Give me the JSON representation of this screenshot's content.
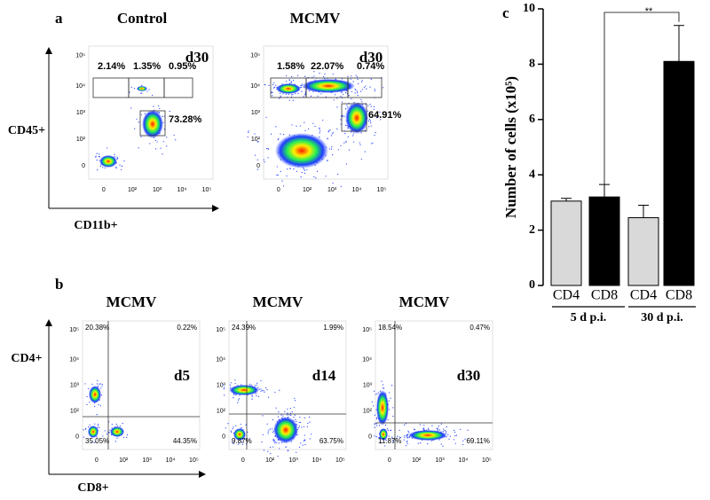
{
  "panel_labels": [
    "a",
    "b",
    "c"
  ],
  "axis_ticks": [
    "0",
    "10²",
    "10³",
    "10⁴",
    "10⁵"
  ],
  "panel_a": {
    "y_label": "CD45+",
    "x_label": "CD11b+",
    "plots": [
      {
        "title": "Control",
        "day": "d30",
        "gates": [
          "2.14%",
          "1.35%",
          "0.95%",
          "73.28%"
        ]
      },
      {
        "title": "MCMV",
        "day": "d30",
        "gates": [
          "1.58%",
          "22.07%",
          "0.74%",
          "64.91%"
        ]
      }
    ]
  },
  "panel_b": {
    "y_label": "CD4+",
    "x_label": "CD8+",
    "plots": [
      {
        "title": "MCMV",
        "day": "d5",
        "quadrants": [
          "20.38%",
          "0.22%",
          "35.05%",
          "44.35%"
        ]
      },
      {
        "title": "MCMV",
        "day": "d14",
        "quadrants": [
          "24.39%",
          "1.99%",
          "9.87%",
          "63.75%"
        ]
      },
      {
        "title": "MCMV",
        "day": "d30",
        "quadrants": [
          "18.54%",
          "0.47%",
          "11.87%",
          "69.11%"
        ]
      }
    ]
  },
  "chart_data": {
    "type": "bar",
    "y_label": "Number of cells (x10⁵)",
    "categories": [
      "CD4",
      "CD8",
      "CD4",
      "CD8"
    ],
    "groups": [
      "5 d p.i.",
      "30 d p.i."
    ],
    "values": [
      3.05,
      3.2,
      2.45,
      8.1
    ],
    "errors": [
      0.1,
      0.45,
      0.45,
      1.3
    ],
    "colors": [
      "#d9d9d9",
      "#000000",
      "#d9d9d9",
      "#000000"
    ],
    "ylim": [
      0,
      10
    ],
    "yticks": [
      0,
      2,
      4,
      6,
      8,
      10
    ],
    "annotation": "**"
  }
}
